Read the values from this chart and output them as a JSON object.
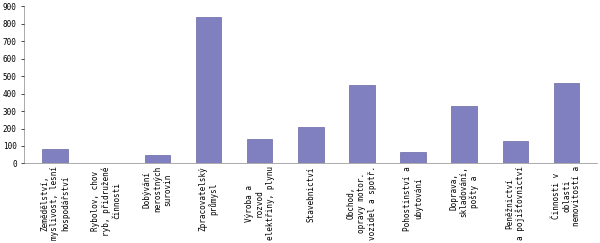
{
  "categories": [
    "Zemědělství,\nmyslivost, lesní\nhospodářství",
    "Rybolov, chov\nryb, přidružené\nčinnosti",
    "Dobývání\nnerostných\nsurovin",
    "Zpracovatelský\nprůmysl",
    "Výroba a\nrozvod\nelektřiny, plynu",
    "Stavebnictví",
    "Obchod,\nopravy motor.\nvozidel a spotř.",
    "Pohostinství a\nubytování",
    "Doprava,\nskladování,\npošty a",
    "Peněžnictví\na pojišťovnictví",
    "Činnosti v\noblasti\nnemovitostí a"
  ],
  "values": [
    80,
    0,
    50,
    840,
    140,
    210,
    450,
    65,
    330,
    130,
    460
  ],
  "bar_color": "#8080c0",
  "bar_edge_color": "#6868a8",
  "ylim": [
    0,
    900
  ],
  "yticks": [
    0,
    100,
    200,
    300,
    400,
    500,
    600,
    700,
    800,
    900
  ],
  "bar_width": 0.5,
  "figsize": [
    6.0,
    2.43
  ],
  "dpi": 100,
  "bg_color": "#ffffff",
  "tick_fontsize": 5.5,
  "axis_linecolor": "#888888"
}
